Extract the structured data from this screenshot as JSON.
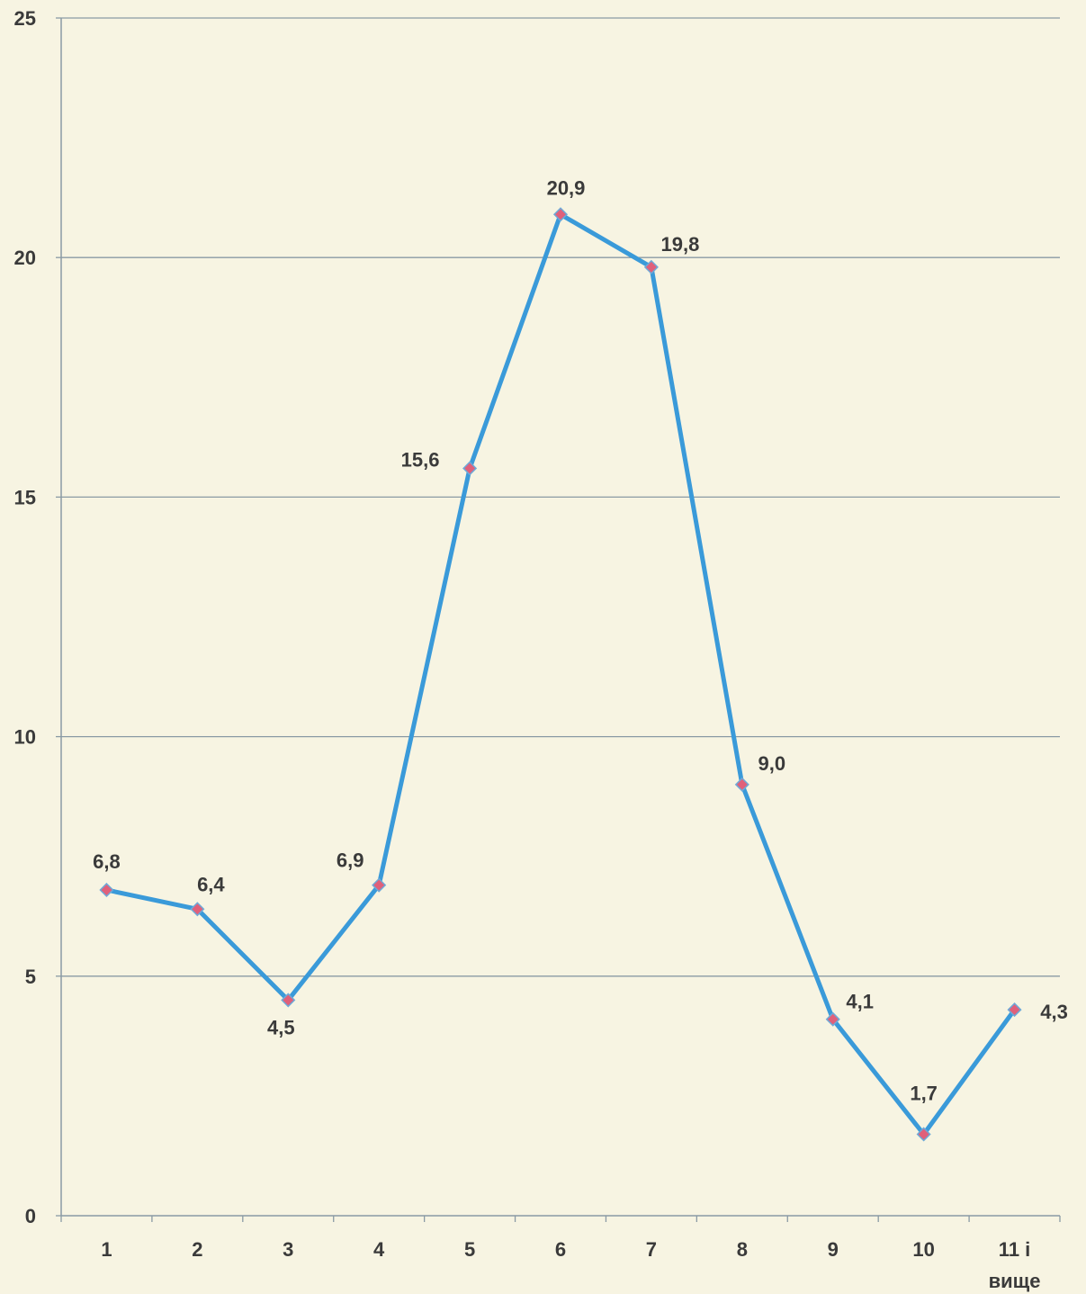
{
  "chart_data": {
    "type": "line",
    "title": "",
    "xlabel": "",
    "ylabel": "",
    "ylim": [
      0,
      25
    ],
    "yticks": [
      "0",
      "5",
      "10",
      "15",
      "20",
      "25"
    ],
    "grid": true,
    "legend": "none",
    "categories": [
      "1",
      "2",
      "3",
      "4",
      "5",
      "6",
      "7",
      "8",
      "9",
      "10",
      "11 і вище"
    ],
    "category_lines": [
      [
        "1"
      ],
      [
        "2"
      ],
      [
        "3"
      ],
      [
        "4"
      ],
      [
        "5"
      ],
      [
        "6"
      ],
      [
        "7"
      ],
      [
        "8"
      ],
      [
        "9"
      ],
      [
        "10"
      ],
      [
        "11 і",
        "вище"
      ]
    ],
    "series": [
      {
        "values": [
          6.8,
          6.4,
          4.5,
          6.9,
          15.6,
          20.9,
          19.8,
          9.0,
          4.1,
          1.7,
          4.3
        ],
        "labels": [
          "6,8",
          "6,4",
          "4,5",
          "6,9",
          "15,6",
          "20,9",
          "19,8",
          "9,0",
          "4,1",
          "1,7",
          "4,3"
        ],
        "line_color": "#3a9ad9",
        "marker_color": "#e0607a",
        "marker_stroke": "#6ea9d8"
      }
    ],
    "colors": {
      "background": "#f7f4e2",
      "grid": "#8a9aa4",
      "axis": "#8a9aa4",
      "text": "#3a3a3a"
    }
  }
}
